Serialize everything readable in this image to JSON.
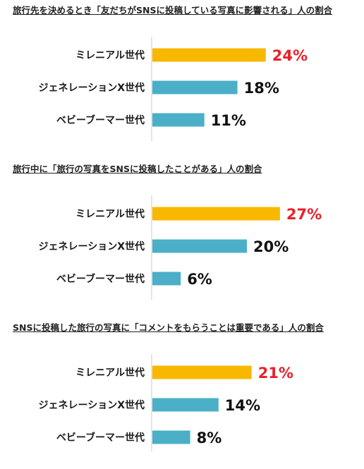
{
  "chart_data": [
    {
      "type": "bar",
      "orientation": "horizontal",
      "title": "旅行先を決めるとき「友だちがSNSに投稿している写真に影響される」人の割合",
      "categories": [
        "ミレニアル世代",
        "ジェネレーションX世代",
        "ベビーブーマー世代"
      ],
      "values": [
        24,
        18,
        11
      ],
      "labels": [
        "24%",
        "18%",
        "11%"
      ],
      "unit": "%",
      "xlim": [
        0,
        30
      ],
      "colors": [
        "#F9B800",
        "#4BAFC8",
        "#4BAFC8"
      ],
      "label_colors": [
        "#E8202A",
        "#111111",
        "#111111"
      ]
    },
    {
      "type": "bar",
      "orientation": "horizontal",
      "title": "旅行中に「旅行の写真をSNSに投稿したことがある」人の割合",
      "categories": [
        "ミレニアル世代",
        "ジェネレーションX世代",
        "ベビーブーマー世代"
      ],
      "values": [
        27,
        20,
        6
      ],
      "labels": [
        "27%",
        "20%",
        "6%"
      ],
      "unit": "%",
      "xlim": [
        0,
        30
      ],
      "colors": [
        "#F9B800",
        "#4BAFC8",
        "#4BAFC8"
      ],
      "label_colors": [
        "#E8202A",
        "#111111",
        "#111111"
      ]
    },
    {
      "type": "bar",
      "orientation": "horizontal",
      "title": "SNSに投稿した旅行の写真に「コメントをもらうことは重要である」人の割合",
      "categories": [
        "ミレニアル世代",
        "ジェネレーションX世代",
        "ベビーブーマー世代"
      ],
      "values": [
        21,
        14,
        8
      ],
      "labels": [
        "21%",
        "14%",
        "8%"
      ],
      "unit": "%",
      "xlim": [
        0,
        30
      ],
      "colors": [
        "#F9B800",
        "#4BAFC8",
        "#4BAFC8"
      ],
      "label_colors": [
        "#E8202A",
        "#111111",
        "#111111"
      ]
    }
  ]
}
